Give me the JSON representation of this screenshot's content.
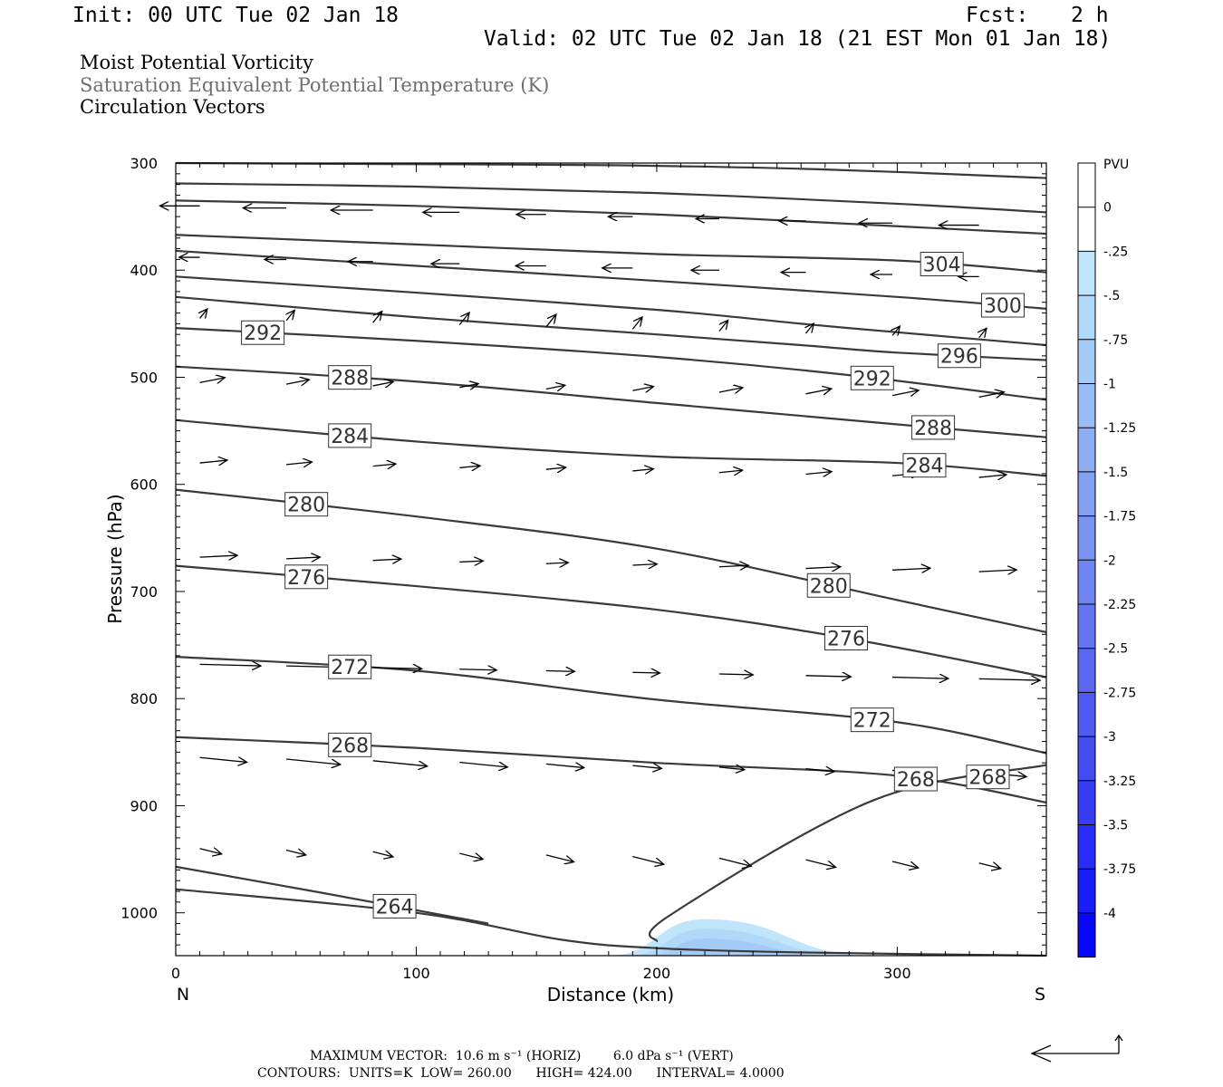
{
  "header": {
    "init": "Init: 00 UTC Tue 02 Jan 18",
    "fcst_label": "Fcst:",
    "fcst_value": "2 h",
    "valid": "Valid: 02 UTC Tue 02 Jan 18 (21 EST Mon 01 Jan 18)"
  },
  "legend": {
    "line1": "Moist Potential Vorticity",
    "line2": "Saturation Equivalent Potential Temperature (K)",
    "line3": "Circulation Vectors"
  },
  "chart_data": {
    "type": "cross-section",
    "xlabel": "Distance (km)",
    "ylabel": "Pressure (hPa)",
    "xlim": [
      0,
      362
    ],
    "ylim": [
      1040,
      300
    ],
    "x_ticks": [
      0,
      100,
      200,
      300
    ],
    "y_ticks": [
      300,
      400,
      500,
      600,
      700,
      800,
      900,
      1000
    ],
    "left_end_label": "N",
    "right_end_label": "S",
    "colorbar": {
      "unit": "PVU",
      "levels": [
        "0",
        "-.25",
        "-.5",
        "-.75",
        "-1",
        "-1.25",
        "-1.5",
        "-1.75",
        "-2",
        "-2.25",
        "-2.5",
        "-2.75",
        "-3",
        "-3.25",
        "-3.5",
        "-3.75",
        "-4"
      ],
      "colors": [
        "#ffffff",
        "#ffffff",
        "#c0e4fa",
        "#b0d8f8",
        "#a4caf6",
        "#98bcf4",
        "#8eaef4",
        "#84a0f2",
        "#7a92f2",
        "#7084f2",
        "#6676f2",
        "#5c68f2",
        "#505af2",
        "#444cf2",
        "#363cf4",
        "#282cf6",
        "#1a1cf8",
        "#0a08fa"
      ]
    },
    "theta_es_contours": [
      {
        "label": "",
        "points": [
          [
            0,
            300
          ],
          [
            90,
            301
          ],
          [
            180,
            302
          ],
          [
            270,
            306
          ],
          [
            362,
            314
          ]
        ]
      },
      {
        "label": "",
        "points": [
          [
            0,
            319
          ],
          [
            100,
            322
          ],
          [
            200,
            328
          ],
          [
            300,
            338
          ],
          [
            362,
            346
          ]
        ]
      },
      {
        "label": "",
        "points": [
          [
            0,
            335
          ],
          [
            100,
            340
          ],
          [
            200,
            348
          ],
          [
            300,
            359
          ],
          [
            362,
            366
          ]
        ]
      },
      {
        "label": "304",
        "points": [
          [
            0,
            367
          ],
          [
            100,
            376
          ],
          [
            200,
            385
          ],
          [
            300,
            391
          ],
          [
            362,
            402
          ]
        ]
      },
      {
        "label": "300",
        "points": [
          [
            0,
            382
          ],
          [
            100,
            396
          ],
          [
            200,
            410
          ],
          [
            300,
            425
          ],
          [
            362,
            436
          ]
        ]
      },
      {
        "label": "",
        "points": [
          [
            0,
            406
          ],
          [
            100,
            421
          ],
          [
            200,
            437
          ],
          [
            260,
            450
          ],
          [
            300,
            458
          ],
          [
            362,
            470
          ]
        ]
      },
      {
        "label": "296",
        "points": [
          [
            0,
            425
          ],
          [
            100,
            444
          ],
          [
            200,
            460
          ],
          [
            260,
            470
          ],
          [
            300,
            477
          ],
          [
            362,
            484
          ]
        ]
      },
      {
        "label": "292",
        "points": [
          [
            0,
            454
          ],
          [
            100,
            466
          ],
          [
            200,
            481
          ],
          [
            280,
            498
          ],
          [
            362,
            521
          ]
        ]
      },
      {
        "label": "288",
        "points": [
          [
            0,
            490
          ],
          [
            100,
            504
          ],
          [
            200,
            524
          ],
          [
            300,
            544
          ],
          [
            362,
            556
          ]
        ]
      },
      {
        "label": "284",
        "points": [
          [
            0,
            540
          ],
          [
            100,
            560
          ],
          [
            200,
            574
          ],
          [
            300,
            580
          ],
          [
            362,
            592
          ]
        ]
      },
      {
        "label": "280",
        "points": [
          [
            0,
            605
          ],
          [
            100,
            630
          ],
          [
            200,
            660
          ],
          [
            300,
            708
          ],
          [
            362,
            738
          ]
        ]
      },
      {
        "label": "276",
        "points": [
          [
            0,
            676
          ],
          [
            100,
            695
          ],
          [
            200,
            717
          ],
          [
            280,
            744
          ],
          [
            362,
            780
          ]
        ]
      },
      {
        "label": "272",
        "points": [
          [
            0,
            761
          ],
          [
            100,
            774
          ],
          [
            200,
            801
          ],
          [
            300,
            822
          ],
          [
            362,
            851
          ]
        ]
      },
      {
        "label": "268",
        "points": [
          [
            0,
            836
          ],
          [
            100,
            846
          ],
          [
            200,
            860
          ],
          [
            300,
            872
          ],
          [
            362,
            897
          ]
        ]
      },
      {
        "label": "264",
        "points": [
          [
            0,
            957
          ],
          [
            60,
            981
          ],
          [
            130,
            1010
          ]
        ]
      },
      {
        "label": "",
        "points": [
          [
            0,
            978
          ],
          [
            100,
            1000
          ],
          [
            160,
            1025
          ],
          [
            200,
            1033
          ],
          [
            260,
            1037
          ],
          [
            362,
            1040
          ]
        ]
      },
      {
        "label": "268",
        "points": [
          [
            200,
            1027
          ],
          [
            205,
            1003
          ],
          [
            290,
            895
          ],
          [
            362,
            862
          ]
        ]
      }
    ],
    "negative_mpv_region": {
      "x_range": [
        180,
        290
      ],
      "peak_x": 220,
      "peak_value": "-1",
      "bottom_hpa": 1040
    },
    "max_vector": {
      "label": "MAXIMUM VECTOR:",
      "horiz": "10.6 m s⁻¹ (HORIZ)",
      "vert": "6.0 dPa s⁻¹ (VERT)"
    },
    "contours_info": {
      "label": "CONTOURS:",
      "units": "UNITS=K",
      "low": "LOW= 260.00",
      "high": "HIGH= 424.00",
      "interval": "INTERVAL= 4.0000"
    }
  }
}
